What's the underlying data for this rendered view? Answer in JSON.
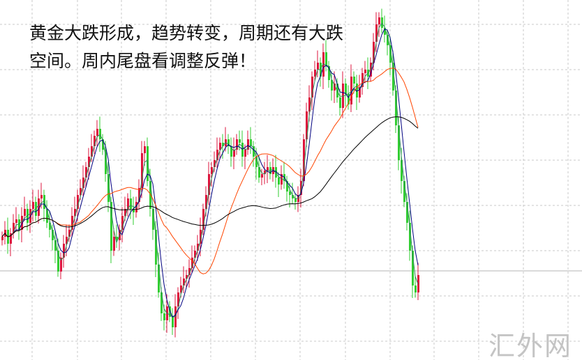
{
  "headline": {
    "line1": "黄金大跌形成，趋势转变，周期还有大跌",
    "line2": "空间。周内尾盘看调整反弹！"
  },
  "watermark": "汇外网",
  "colors": {
    "up": "#dc143c",
    "down": "#32cd32",
    "grid": "#c8c8c8",
    "price_line": "#b4b4b4"
  },
  "chart_data": {
    "type": "candlestick",
    "title": "",
    "xlabel": "",
    "ylabel": "",
    "ylim": [
      0,
      100
    ],
    "grid": true,
    "note_open": "open equals previous close",
    "close": [
      32,
      34,
      30,
      33,
      36,
      37,
      34,
      38,
      40,
      36,
      40,
      42,
      38,
      43,
      44,
      40,
      36,
      34,
      31,
      28,
      22,
      26,
      30,
      32,
      34,
      38,
      40,
      44,
      46,
      49,
      52,
      55,
      58,
      61,
      63,
      60,
      57,
      50,
      42,
      28,
      32,
      31,
      34,
      38,
      40,
      43,
      40,
      39,
      42,
      46,
      56,
      58,
      48,
      40,
      34,
      24,
      16,
      10,
      8,
      12,
      9,
      6,
      12,
      16,
      18,
      20,
      21,
      23,
      26,
      28,
      30,
      34,
      40,
      44,
      50,
      52,
      54,
      57,
      59,
      58,
      60,
      58,
      55,
      57,
      60,
      59,
      55,
      57,
      60,
      58,
      55,
      52,
      49,
      50,
      51,
      52,
      50,
      52,
      49,
      47,
      50,
      48,
      45,
      44,
      43,
      42,
      44,
      48,
      60,
      68,
      72,
      78,
      80,
      82,
      78,
      85,
      81,
      77,
      74,
      76,
      72,
      69,
      76,
      73,
      70,
      78,
      76,
      72,
      75,
      79,
      80,
      78,
      82,
      88,
      93,
      95,
      92,
      90,
      87,
      82,
      74,
      64,
      54,
      48,
      42,
      36,
      28,
      18,
      16,
      21
    ],
    "current_price": 21.5,
    "moving_averages": [
      {
        "period": 3,
        "color": "#2e8b57"
      },
      {
        "period": 5,
        "color": "#000080"
      },
      {
        "period": 20,
        "color": "#ff4500"
      },
      {
        "period": 60,
        "color": "#000000"
      }
    ]
  }
}
